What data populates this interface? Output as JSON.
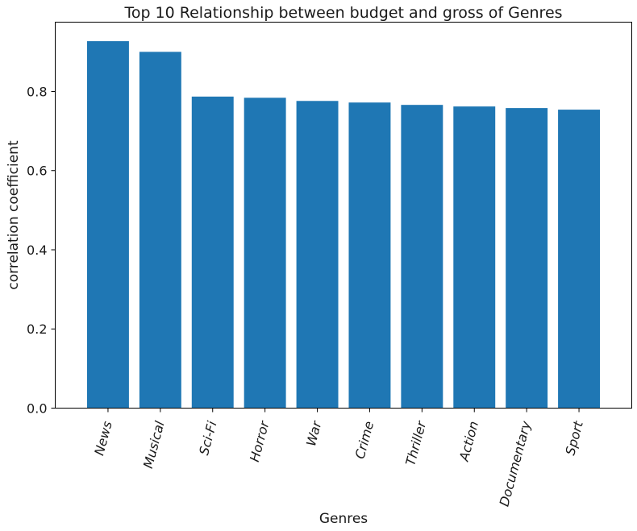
{
  "chart_data": {
    "type": "bar",
    "title": "Top 10 Relationship between budget and gross of Genres",
    "xlabel": "Genres",
    "ylabel": "correlation coefficient",
    "categories": [
      "News",
      "Musical",
      "Sci-Fi",
      "Horror",
      "War",
      "Crime",
      "Thriller",
      "Action",
      "Documentary",
      "Sport"
    ],
    "values": [
      0.927,
      0.9,
      0.787,
      0.784,
      0.776,
      0.772,
      0.766,
      0.762,
      0.758,
      0.754
    ],
    "ylim": [
      0,
      0.975
    ],
    "yticks": [
      0.0,
      0.2,
      0.4,
      0.6,
      0.8
    ],
    "ytick_labels": [
      "0.0",
      "0.2",
      "0.4",
      "0.6",
      "0.8"
    ],
    "bar_color": "#1f77b4",
    "grid": false,
    "legend": "none"
  }
}
